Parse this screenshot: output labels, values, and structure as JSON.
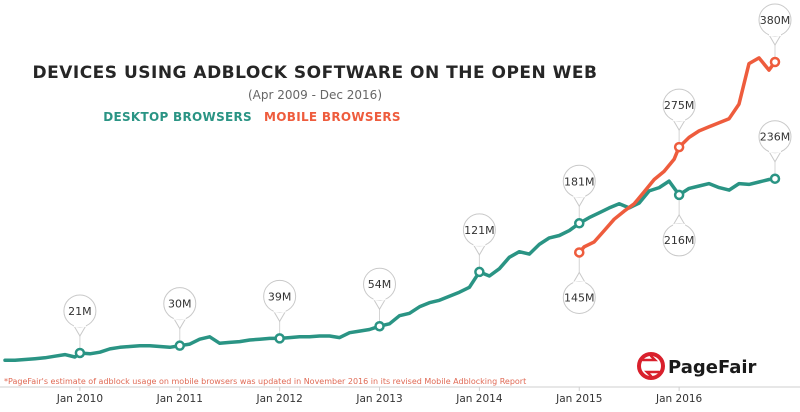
{
  "chart_data": {
    "type": "line",
    "title": "DEVICES USING ADBLOCK SOFTWARE ON THE OPEN WEB",
    "subtitle": "(Apr 2009 - Dec 2016)",
    "xlim": [
      2009.25,
      2016.96
    ],
    "ylim": [
      0,
      380
    ],
    "x_ticks": [
      {
        "label": "Jan 2010",
        "x": 2010.0
      },
      {
        "label": "Jan 2011",
        "x": 2011.0
      },
      {
        "label": "Jan 2012",
        "x": 2012.0
      },
      {
        "label": "Jan 2013",
        "x": 2013.0
      },
      {
        "label": "Jan 2014",
        "x": 2014.0
      },
      {
        "label": "Jan 2015",
        "x": 2015.0
      },
      {
        "label": "Jan 2016",
        "x": 2016.0
      }
    ],
    "series": [
      {
        "name": "DESKTOP BROWSERS",
        "color": "#2a9484",
        "x": [
          2009.25,
          2009.35,
          2009.45,
          2009.55,
          2009.65,
          2009.75,
          2009.85,
          2009.95,
          2010.0,
          2010.1,
          2010.2,
          2010.3,
          2010.4,
          2010.5,
          2010.6,
          2010.7,
          2010.8,
          2010.9,
          2011.0,
          2011.1,
          2011.2,
          2011.3,
          2011.4,
          2011.5,
          2011.6,
          2011.7,
          2011.8,
          2011.9,
          2012.0,
          2012.1,
          2012.2,
          2012.3,
          2012.4,
          2012.5,
          2012.6,
          2012.7,
          2012.8,
          2012.9,
          2013.0,
          2013.1,
          2013.2,
          2013.3,
          2013.4,
          2013.5,
          2013.6,
          2013.7,
          2013.8,
          2013.9,
          2014.0,
          2014.1,
          2014.2,
          2014.3,
          2014.4,
          2014.5,
          2014.6,
          2014.7,
          2014.8,
          2014.9,
          2015.0,
          2015.1,
          2015.2,
          2015.3,
          2015.4,
          2015.5,
          2015.6,
          2015.7,
          2015.8,
          2015.9,
          2016.0,
          2016.1,
          2016.2,
          2016.3,
          2016.4,
          2016.5,
          2016.6,
          2016.7,
          2016.8,
          2016.9,
          2016.96
        ],
        "values": [
          12,
          12,
          13,
          14,
          15,
          17,
          19,
          16,
          21,
          20,
          22,
          26,
          28,
          29,
          30,
          30,
          29,
          28,
          30,
          32,
          38,
          41,
          33,
          34,
          35,
          37,
          38,
          39,
          39,
          40,
          41,
          41,
          42,
          42,
          40,
          46,
          48,
          50,
          54,
          57,
          67,
          70,
          78,
          83,
          86,
          91,
          96,
          102,
          121,
          116,
          125,
          139,
          146,
          143,
          155,
          163,
          166,
          172,
          181,
          188,
          194,
          200,
          205,
          200,
          206,
          221,
          225,
          233,
          216,
          224,
          227,
          230,
          225,
          222,
          230,
          229,
          232,
          235,
          236
        ]
      },
      {
        "name": "MOBILE BROWSERS",
        "color": "#ee5c3d",
        "x": [
          2015.0,
          2015.05,
          2015.15,
          2015.25,
          2015.35,
          2015.45,
          2015.55,
          2015.65,
          2015.75,
          2015.85,
          2015.95,
          2016.0,
          2016.1,
          2016.2,
          2016.3,
          2016.4,
          2016.5,
          2016.6,
          2016.7,
          2016.8,
          2016.9,
          2016.96
        ],
        "values": [
          145,
          152,
          158,
          172,
          186,
          196,
          205,
          220,
          235,
          245,
          260,
          275,
          287,
          295,
          300,
          305,
          310,
          328,
          378,
          385,
          370,
          380
        ]
      }
    ],
    "annotations": [
      {
        "label": "21M",
        "series": 0,
        "x": 2010.0,
        "value": 21,
        "placement": "above"
      },
      {
        "label": "30M",
        "series": 0,
        "x": 2011.0,
        "value": 30,
        "placement": "above"
      },
      {
        "label": "39M",
        "series": 0,
        "x": 2012.0,
        "value": 39,
        "placement": "above"
      },
      {
        "label": "54M",
        "series": 0,
        "x": 2013.0,
        "value": 54,
        "placement": "above"
      },
      {
        "label": "121M",
        "series": 0,
        "x": 2014.0,
        "value": 121,
        "placement": "above"
      },
      {
        "label": "181M",
        "series": 0,
        "x": 2015.0,
        "value": 181,
        "placement": "above"
      },
      {
        "label": "145M",
        "series": 1,
        "x": 2015.0,
        "value": 145,
        "placement": "below"
      },
      {
        "label": "275M",
        "series": 1,
        "x": 2016.0,
        "value": 275,
        "placement": "above"
      },
      {
        "label": "216M",
        "series": 0,
        "x": 2016.0,
        "value": 216,
        "placement": "below"
      },
      {
        "label": "236M",
        "series": 0,
        "x": 2016.96,
        "value": 236,
        "placement": "above"
      },
      {
        "label": "380M",
        "series": 1,
        "x": 2016.96,
        "value": 380,
        "placement": "above"
      }
    ],
    "footnote": "*PageFair's estimate of adblock usage on mobile browsers was updated in November 2016 in its revised Mobile Adblocking Report",
    "brand": "PageFair",
    "grid": false
  }
}
